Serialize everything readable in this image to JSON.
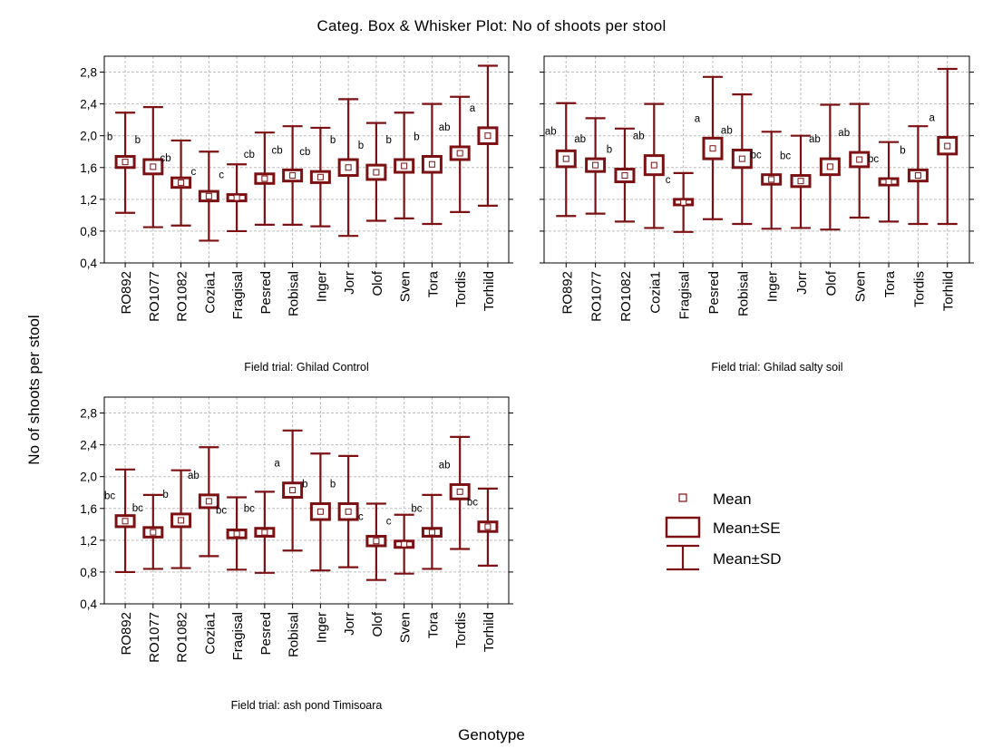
{
  "title": "Categ. Box & Whisker Plot: No of shoots per stool",
  "ylabel": "No of shoots per stool",
  "xlabel": "Genotype",
  "legend": {
    "mean": "Mean",
    "se": "Mean±SE",
    "sd": "Mean±SD"
  },
  "colors": {
    "box": "#7b1113",
    "marker_fill": "#ffffff",
    "grid": "#bdbdbd"
  },
  "chart_data": [
    {
      "type": "box-whisker",
      "subtitle": "Field trial: Ghilad Control",
      "categories": [
        "RO892",
        "RO1077",
        "RO1082",
        "Cozia1",
        "Fragisal",
        "Pesred",
        "Robisal",
        "Inger",
        "Jorr",
        "Olof",
        "Sven",
        "Tora",
        "Tordis",
        "Torhild"
      ],
      "mean": [
        1.67,
        1.61,
        1.41,
        1.24,
        1.22,
        1.46,
        1.5,
        1.48,
        1.6,
        1.54,
        1.62,
        1.64,
        1.78,
        2.0
      ],
      "se_low": [
        1.6,
        1.52,
        1.35,
        1.18,
        1.18,
        1.4,
        1.43,
        1.41,
        1.5,
        1.45,
        1.54,
        1.54,
        1.7,
        1.9
      ],
      "se_high": [
        1.74,
        1.7,
        1.47,
        1.3,
        1.26,
        1.52,
        1.57,
        1.55,
        1.7,
        1.63,
        1.7,
        1.74,
        1.86,
        2.1
      ],
      "sd_low": [
        1.03,
        0.85,
        0.87,
        0.68,
        0.8,
        0.88,
        0.88,
        0.86,
        0.74,
        0.93,
        0.96,
        0.89,
        1.04,
        1.12
      ],
      "sd_high": [
        2.29,
        2.36,
        1.94,
        1.8,
        1.64,
        2.04,
        2.12,
        2.1,
        2.46,
        2.16,
        2.29,
        2.4,
        2.49,
        2.88
      ],
      "letters": [
        "b",
        "b",
        "cb",
        "c",
        "c",
        "cb",
        "cb",
        "cb",
        "b",
        "b",
        "b",
        "b",
        "ab",
        "a"
      ],
      "ylim": [
        0.4,
        3.0
      ],
      "yticks": [
        "0,4",
        "0,8",
        "1,2",
        "1,6",
        "2,0",
        "2,4",
        "2,8"
      ],
      "grid": true
    },
    {
      "type": "box-whisker",
      "subtitle": "Field trial: Ghilad salty soil",
      "categories": [
        "RO892",
        "RO1077",
        "RO1082",
        "Cozia1",
        "Fragisal",
        "Pesred",
        "Robisal",
        "Inger",
        "Jorr",
        "Olof",
        "Sven",
        "Tora",
        "Tordis",
        "Torhild"
      ],
      "mean": [
        1.71,
        1.63,
        1.5,
        1.63,
        1.16,
        1.84,
        1.71,
        1.45,
        1.43,
        1.61,
        1.7,
        1.42,
        1.5,
        1.87
      ],
      "se_low": [
        1.61,
        1.55,
        1.42,
        1.51,
        1.13,
        1.71,
        1.6,
        1.39,
        1.36,
        1.51,
        1.61,
        1.38,
        1.43,
        1.77
      ],
      "se_high": [
        1.81,
        1.71,
        1.58,
        1.75,
        1.2,
        1.97,
        1.82,
        1.51,
        1.5,
        1.71,
        1.79,
        1.46,
        1.57,
        1.98
      ],
      "sd_low": [
        0.99,
        1.02,
        0.92,
        0.84,
        0.79,
        0.95,
        0.89,
        0.83,
        0.84,
        0.82,
        0.97,
        0.92,
        0.89,
        0.89
      ],
      "sd_high": [
        2.41,
        2.22,
        2.09,
        2.4,
        1.53,
        2.74,
        2.52,
        2.05,
        2.0,
        2.39,
        2.4,
        1.92,
        2.12,
        2.84
      ],
      "letters": [
        "ab",
        "ab",
        "b",
        "ab",
        "c",
        "a",
        "ab",
        "bc",
        "bc",
        "ab",
        "ab",
        "bc",
        "b",
        "a"
      ],
      "ylim": [
        0.4,
        3.0
      ],
      "grid": true
    },
    {
      "type": "box-whisker",
      "subtitle": "Field trial: ash pond Timisoara",
      "categories": [
        "RO892",
        "RO1077",
        "RO1082",
        "Cozia1",
        "Fragisal",
        "Pesred",
        "Robisal",
        "Inger",
        "Jorr",
        "Olof",
        "Sven",
        "Tora",
        "Tordis",
        "Torhild"
      ],
      "mean": [
        1.44,
        1.3,
        1.45,
        1.69,
        1.28,
        1.3,
        1.83,
        1.56,
        1.56,
        1.19,
        1.15,
        1.3,
        1.81,
        1.37
      ],
      "se_low": [
        1.37,
        1.24,
        1.37,
        1.61,
        1.23,
        1.25,
        1.74,
        1.46,
        1.46,
        1.13,
        1.11,
        1.25,
        1.72,
        1.31
      ],
      "se_high": [
        1.51,
        1.36,
        1.53,
        1.77,
        1.33,
        1.35,
        1.92,
        1.66,
        1.66,
        1.25,
        1.19,
        1.35,
        1.9,
        1.43
      ],
      "sd_low": [
        0.8,
        0.84,
        0.85,
        1.0,
        0.83,
        0.79,
        1.07,
        0.82,
        0.86,
        0.7,
        0.78,
        0.84,
        1.09,
        0.88
      ],
      "sd_high": [
        2.09,
        1.77,
        2.08,
        2.37,
        1.74,
        1.81,
        2.58,
        2.29,
        2.26,
        1.66,
        1.52,
        1.77,
        2.5,
        1.85
      ],
      "letters": [
        "bc",
        "bc",
        "b",
        "ab",
        "bc",
        "bc",
        "a",
        "b",
        "b",
        "c",
        "c",
        "bc",
        "ab",
        "bc"
      ],
      "ylim": [
        0.4,
        3.0
      ],
      "yticks": [
        "0,4",
        "0,8",
        "1,2",
        "1,6",
        "2,0",
        "2,4",
        "2,8"
      ],
      "grid": true
    }
  ]
}
